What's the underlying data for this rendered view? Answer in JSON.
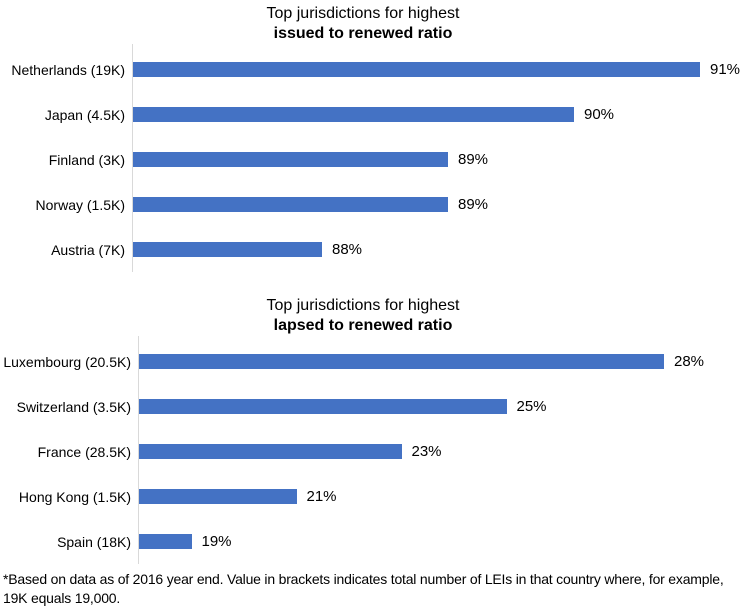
{
  "chart_data": [
    {
      "type": "bar",
      "orientation": "horizontal",
      "title_line1": "Top jurisdictions for highest",
      "title_line2": "issued to renewed ratio",
      "categories": [
        "Netherlands (19K)",
        "Japan (4.5K)",
        "Finland (3K)",
        "Norway (1.5K)",
        "Austria (7K)"
      ],
      "values": [
        91,
        90,
        89,
        89,
        88
      ],
      "value_labels": [
        "91%",
        "90%",
        "89%",
        "89%",
        "88%"
      ],
      "unit": "%",
      "axis_min": 86.5,
      "axis_max": 91.5,
      "gridlines": false,
      "legend": "none",
      "bar_color": "#4472c4"
    },
    {
      "type": "bar",
      "orientation": "horizontal",
      "title_line1": "Top jurisdictions for highest",
      "title_line2": "lapsed to renewed ratio",
      "categories": [
        "Luxembourg (20.5K)",
        "Switzerland (3.5K)",
        "France (28.5K)",
        "Hong Kong (1.5K)",
        "Spain (18K)"
      ],
      "values": [
        28,
        25,
        23,
        21,
        19
      ],
      "value_labels": [
        "28%",
        "25%",
        "23%",
        "21%",
        "19%"
      ],
      "unit": "%",
      "axis_min": 18,
      "axis_max": 30,
      "gridlines": false,
      "legend": "none",
      "bar_color": "#4472c4"
    }
  ],
  "footnote": "*Based on data as of 2016 year end. Value in brackets indicates total number of LEIs in that country where, for example, 19K equals 19,000.",
  "colors": {
    "bar": "#4472c4",
    "axis_line": "#d9d9d9",
    "text": "#000000",
    "background": "#ffffff"
  }
}
